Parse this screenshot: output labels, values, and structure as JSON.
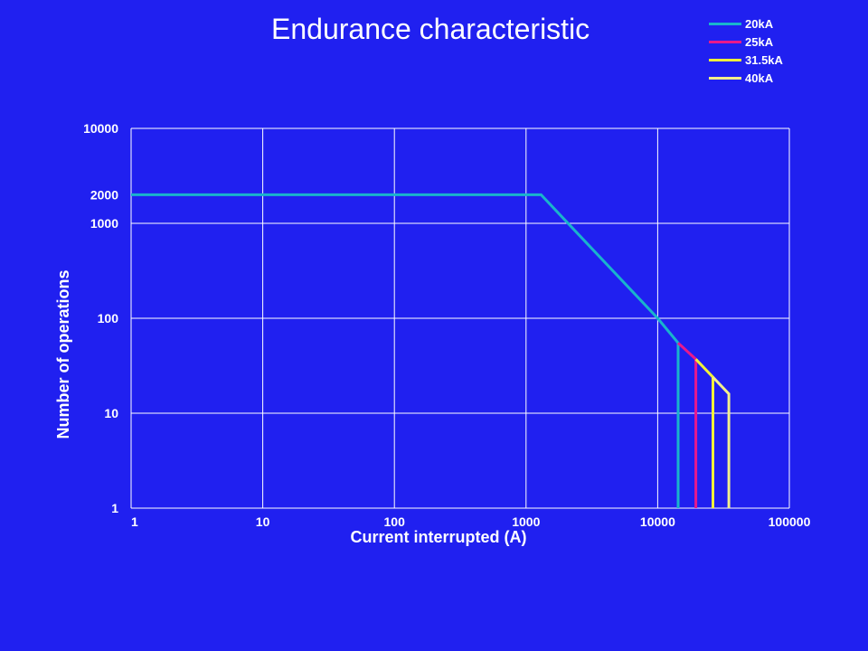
{
  "chart_data": {
    "type": "line",
    "title": "Endurance characteristic",
    "xlabel": "Current interrupted (A)",
    "ylabel": "Number of operations",
    "x_scale": "log",
    "y_scale": "log",
    "xlim": [
      1,
      100000
    ],
    "ylim": [
      1,
      10000
    ],
    "x_ticks": [
      1,
      10,
      100,
      1000,
      10000,
      100000
    ],
    "x_tick_labels": [
      "1",
      "10",
      "100",
      "1000",
      "10000",
      "100000"
    ],
    "y_ticks": [
      1,
      10,
      100,
      1000,
      2000,
      10000
    ],
    "y_tick_labels": [
      "1",
      "10",
      "100",
      "1000",
      "2000",
      "10000"
    ],
    "grid": true,
    "legend_position": "top-right",
    "series": [
      {
        "name": "20kA",
        "color": "#19b4cc",
        "points": [
          [
            1,
            2000
          ],
          [
            1300,
            2000
          ],
          [
            10000,
            100
          ],
          [
            14300,
            55
          ],
          [
            14300,
            1
          ]
        ]
      },
      {
        "name": "25kA",
        "color": "#e8198c",
        "points": [
          [
            14300,
            55
          ],
          [
            19500,
            37
          ],
          [
            19500,
            1
          ]
        ]
      },
      {
        "name": "31.5kA",
        "color": "#f0f03a",
        "points": [
          [
            19500,
            37
          ],
          [
            26300,
            24
          ],
          [
            26300,
            1
          ]
        ]
      },
      {
        "name": "40kA",
        "color": "#f2ef8c",
        "points": [
          [
            26300,
            24
          ],
          [
            34700,
            16
          ],
          [
            34700,
            1
          ]
        ]
      }
    ]
  }
}
